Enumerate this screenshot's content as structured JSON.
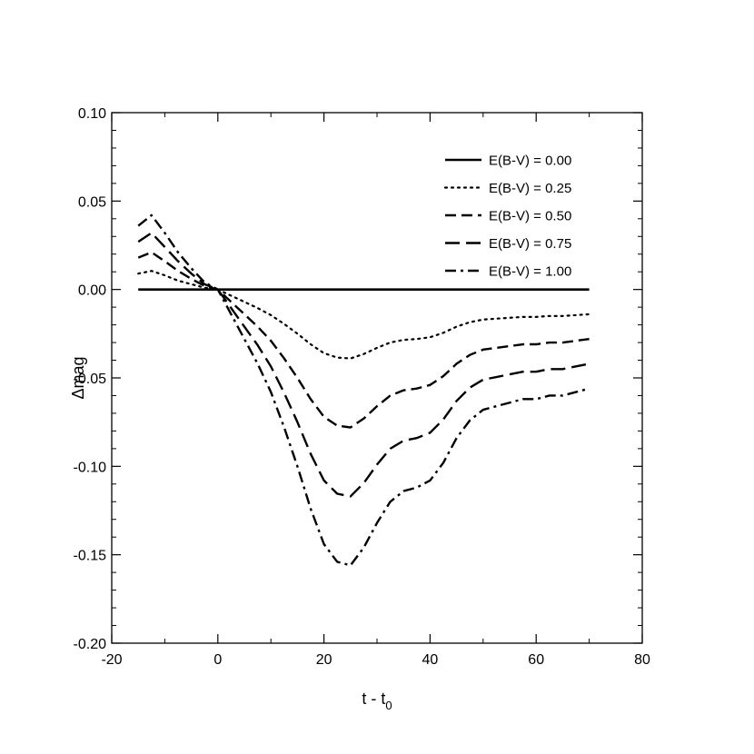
{
  "chart_data": {
    "type": "line",
    "title": "",
    "xlabel": "t - t",
    "xlabel_subscript": "0",
    "ylabel": "Δmag",
    "xlim": [
      -20,
      80
    ],
    "ylim": [
      -0.2,
      0.1
    ],
    "x_ticks": [
      -20,
      0,
      20,
      40,
      60,
      80
    ],
    "x_tick_labels": [
      "-20",
      "0",
      "20",
      "40",
      "60",
      "80"
    ],
    "y_ticks": [
      -0.2,
      -0.15,
      -0.1,
      -0.05,
      0.0,
      0.05,
      0.1
    ],
    "y_tick_labels": [
      "-0.20",
      "-0.15",
      "-0.10",
      "-0.05",
      "0.00",
      "0.05",
      "0.10"
    ],
    "grid": false,
    "legend_position": "top-right",
    "x": [
      -15,
      -12.5,
      -10,
      -7.5,
      -5,
      -2.5,
      0,
      2.5,
      5,
      7.5,
      10,
      12.5,
      15,
      17.5,
      20,
      22.5,
      25,
      27.5,
      30,
      32.5,
      35,
      37.5,
      40,
      42.5,
      45,
      47.5,
      50,
      52.5,
      55,
      57.5,
      60,
      62.5,
      65,
      67.5,
      70
    ],
    "series": [
      {
        "name": "E(B-V) = 0.00",
        "style": "solid",
        "values": [
          0.0,
          0.0,
          0.0,
          0.0,
          0.0,
          0.0,
          0.0,
          0.0,
          0.0,
          0.0,
          0.0,
          0.0,
          0.0,
          0.0,
          0.0,
          0.0,
          0.0,
          0.0,
          0.0,
          0.0,
          0.0,
          0.0,
          0.0,
          0.0,
          0.0,
          0.0,
          0.0,
          0.0,
          0.0,
          0.0,
          0.0,
          0.0,
          0.0,
          0.0,
          0.0
        ]
      },
      {
        "name": "E(B-V) = 0.25",
        "style": "dotted",
        "values": [
          0.009,
          0.0105,
          0.008,
          0.005,
          0.003,
          0.001,
          0.0,
          -0.0035,
          -0.007,
          -0.0105,
          -0.0145,
          -0.0195,
          -0.025,
          -0.031,
          -0.036,
          -0.0385,
          -0.039,
          -0.0365,
          -0.033,
          -0.03,
          -0.0285,
          -0.028,
          -0.027,
          -0.0245,
          -0.021,
          -0.0185,
          -0.017,
          -0.0165,
          -0.016,
          -0.0155,
          -0.0155,
          -0.015,
          -0.015,
          -0.0145,
          -0.014
        ]
      },
      {
        "name": "E(B-V) = 0.50",
        "style": "dashed",
        "values": [
          0.018,
          0.021,
          0.016,
          0.0105,
          0.006,
          0.002,
          0.0,
          -0.007,
          -0.014,
          -0.021,
          -0.029,
          -0.039,
          -0.05,
          -0.062,
          -0.072,
          -0.077,
          -0.078,
          -0.073,
          -0.066,
          -0.06,
          -0.057,
          -0.056,
          -0.054,
          -0.049,
          -0.042,
          -0.037,
          -0.034,
          -0.033,
          -0.032,
          -0.031,
          -0.031,
          -0.03,
          -0.03,
          -0.029,
          -0.028
        ]
      },
      {
        "name": "E(B-V) = 0.75",
        "style": "longdash",
        "values": [
          0.027,
          0.032,
          0.024,
          0.016,
          0.009,
          0.003,
          0.0,
          -0.0105,
          -0.021,
          -0.0315,
          -0.0435,
          -0.0585,
          -0.075,
          -0.093,
          -0.108,
          -0.1155,
          -0.117,
          -0.1095,
          -0.099,
          -0.09,
          -0.0855,
          -0.084,
          -0.081,
          -0.0735,
          -0.063,
          -0.0555,
          -0.051,
          -0.0495,
          -0.048,
          -0.0465,
          -0.0465,
          -0.045,
          -0.045,
          -0.0435,
          -0.042
        ]
      },
      {
        "name": "E(B-V) = 1.00",
        "style": "dashdot",
        "values": [
          0.036,
          0.042,
          0.032,
          0.021,
          0.012,
          0.004,
          0.0,
          -0.014,
          -0.028,
          -0.042,
          -0.058,
          -0.078,
          -0.1,
          -0.124,
          -0.144,
          -0.154,
          -0.156,
          -0.146,
          -0.132,
          -0.12,
          -0.114,
          -0.112,
          -0.108,
          -0.098,
          -0.084,
          -0.074,
          -0.068,
          -0.066,
          -0.064,
          -0.062,
          -0.062,
          -0.06,
          -0.06,
          -0.058,
          -0.056
        ]
      }
    ]
  }
}
